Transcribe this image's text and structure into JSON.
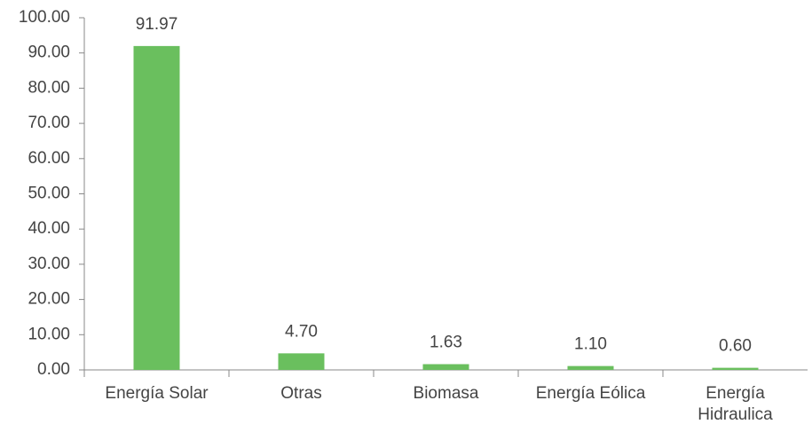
{
  "chart_data": {
    "type": "bar",
    "categories": [
      "Energía Solar",
      "Otras",
      "Biomasa",
      "Energía Eólica",
      "Energía Hidraulica"
    ],
    "values": [
      91.97,
      4.7,
      1.63,
      1.1,
      0.6
    ],
    "value_labels": [
      "91.97",
      "4.70",
      "1.63",
      "1.10",
      "0.60"
    ],
    "color": "#6abf5e",
    "ylim": [
      0,
      100
    ],
    "yticks": [
      {
        "value": 0,
        "label": "0.00"
      },
      {
        "value": 10,
        "label": "10.00"
      },
      {
        "value": 20,
        "label": "20.00"
      },
      {
        "value": 30,
        "label": "30.00"
      },
      {
        "value": 40,
        "label": "40.00"
      },
      {
        "value": 50,
        "label": "50.00"
      },
      {
        "value": 60,
        "label": "60.00"
      },
      {
        "value": 70,
        "label": "70.00"
      },
      {
        "value": 80,
        "label": "80.00"
      },
      {
        "value": 90,
        "label": "90.00"
      },
      {
        "value": 100,
        "label": "100.00"
      }
    ],
    "grid": false
  }
}
